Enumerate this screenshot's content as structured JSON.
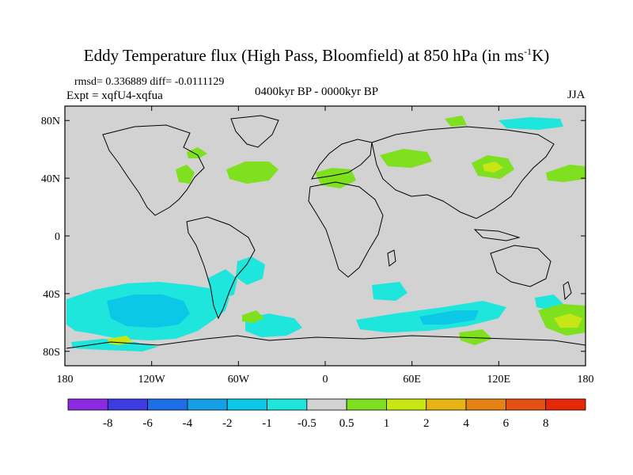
{
  "title": {
    "main": "Eddy Temperature flux (High Pass, Bloomfield) at 850 hPa (in ms",
    "sup": "-1",
    "tail": "K)"
  },
  "stats_line": "rmsd= 0.336889 diff= -0.0111129",
  "expt_line": "Expt = xqfU4-xqfua",
  "period_line": "0400kyr BP - 0000kyr BP",
  "season": "JJA",
  "lat_labels": [
    "80N",
    "40N",
    "0",
    "40S",
    "80S"
  ],
  "lon_labels": [
    "180",
    "120W",
    "60W",
    "0",
    "60E",
    "120E",
    "180"
  ],
  "colorbar": {
    "labels": [
      "-8",
      "-6",
      "-4",
      "-2",
      "-1",
      "-0.5",
      "0.5",
      "1",
      "2",
      "4",
      "6",
      "8"
    ],
    "colors": [
      "#8a2be2",
      "#3c3ce0",
      "#1e6ee6",
      "#14a0e6",
      "#0ac8e6",
      "#1ee6dc",
      "#d2d2d2",
      "#7ee01e",
      "#c8e614",
      "#e6b414",
      "#e68214",
      "#e65014",
      "#e6280a"
    ]
  },
  "map_colors": {
    "background": "#d2d2d2",
    "coast": "#000000"
  }
}
